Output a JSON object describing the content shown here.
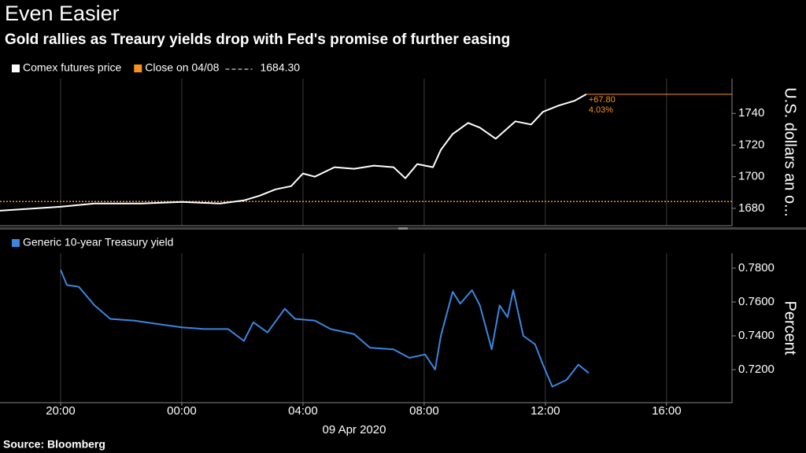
{
  "header": {
    "title": "Even Easier",
    "subtitle": "Gold rallies as Treaury yields drop with Fed's promise of further easing"
  },
  "chart_data": [
    {
      "type": "line",
      "series": [
        {
          "name": "Comex futures price",
          "color": "#ffffff",
          "x": [
            -6,
            -4,
            -2.88,
            -1.32,
            0,
            1.27,
            2.05,
            2.57,
            3.09,
            3.61,
            4,
            4.39,
            5.04,
            5.69,
            6.34,
            6.99,
            7.38,
            7.77,
            8.29,
            8.55,
            8.94,
            9.45,
            9.84,
            10.36,
            11.01,
            11.53,
            11.92,
            12.44,
            12.96,
            13.35
          ],
          "values": [
            1678.5,
            1681,
            1683,
            1683,
            1684,
            1683,
            1685,
            1688,
            1692,
            1694,
            1702,
            1700,
            1706,
            1705,
            1707,
            1706,
            1699,
            1708,
            1706,
            1717,
            1727,
            1734,
            1731,
            1724,
            1735,
            1733,
            1741,
            1745,
            1748,
            1752.1
          ]
        }
      ],
      "reference": {
        "name": "Close on 04/08",
        "value": 1684.3,
        "value_label": "1684.30",
        "color": "#f7931e"
      },
      "change": {
        "value": 67.8,
        "label": "+67.80"
      },
      "change_pct": {
        "value": 4.03,
        "label": "4.03%"
      },
      "y_label": "U.S. dollars an o...",
      "xlim": [
        -6,
        18.16
      ],
      "xticks": [
        -4,
        0,
        4,
        8,
        12,
        16
      ],
      "ylim": [
        1669,
        1762
      ],
      "yticks": [
        1680,
        1700,
        1720,
        1740
      ],
      "grid": "x"
    },
    {
      "type": "line",
      "series": [
        {
          "name": "Generic 10-year Treasury yield",
          "color": "#3a86e0",
          "x": [
            -4,
            -3.79,
            -3.4,
            -2.88,
            -2.36,
            -1.58,
            -0.81,
            0,
            0.75,
            1.53,
            2.05,
            2.36,
            2.83,
            3.4,
            3.74,
            4.39,
            4.91,
            5.69,
            6.21,
            6.99,
            7.51,
            8.03,
            8.36,
            8.55,
            8.94,
            9.19,
            9.58,
            9.84,
            10.23,
            10.49,
            10.75,
            10.94,
            11.27,
            11.66,
            11.92,
            12.23,
            12.7,
            13.09,
            13.43
          ],
          "values": [
            0.779,
            0.77,
            0.769,
            0.758,
            0.75,
            0.749,
            0.747,
            0.745,
            0.744,
            0.744,
            0.737,
            0.748,
            0.742,
            0.756,
            0.75,
            0.749,
            0.744,
            0.741,
            0.733,
            0.732,
            0.727,
            0.729,
            0.72,
            0.74,
            0.766,
            0.759,
            0.767,
            0.758,
            0.732,
            0.758,
            0.751,
            0.767,
            0.74,
            0.735,
            0.723,
            0.71,
            0.714,
            0.723,
            0.718
          ]
        }
      ],
      "y_label": "Percent",
      "x_label": "09 Apr 2020",
      "xlim": [
        -6,
        18.16
      ],
      "xticks": [
        {
          "value": -4,
          "label": "20:00"
        },
        {
          "value": 0,
          "label": "00:00"
        },
        {
          "value": 4,
          "label": "04:00"
        },
        {
          "value": 8,
          "label": "08:00"
        },
        {
          "value": 12,
          "label": "12:00"
        },
        {
          "value": 16,
          "label": "16:00"
        }
      ],
      "ylim": [
        0.7005,
        0.7888
      ],
      "yticks": [
        {
          "value": 0.72,
          "label": "0.7200"
        },
        {
          "value": 0.74,
          "label": "0.7400"
        },
        {
          "value": 0.76,
          "label": "0.7600"
        },
        {
          "value": 0.78,
          "label": "0.7800"
        }
      ],
      "grid": "x"
    }
  ],
  "footer": {
    "source": "Source: Bloomberg"
  }
}
